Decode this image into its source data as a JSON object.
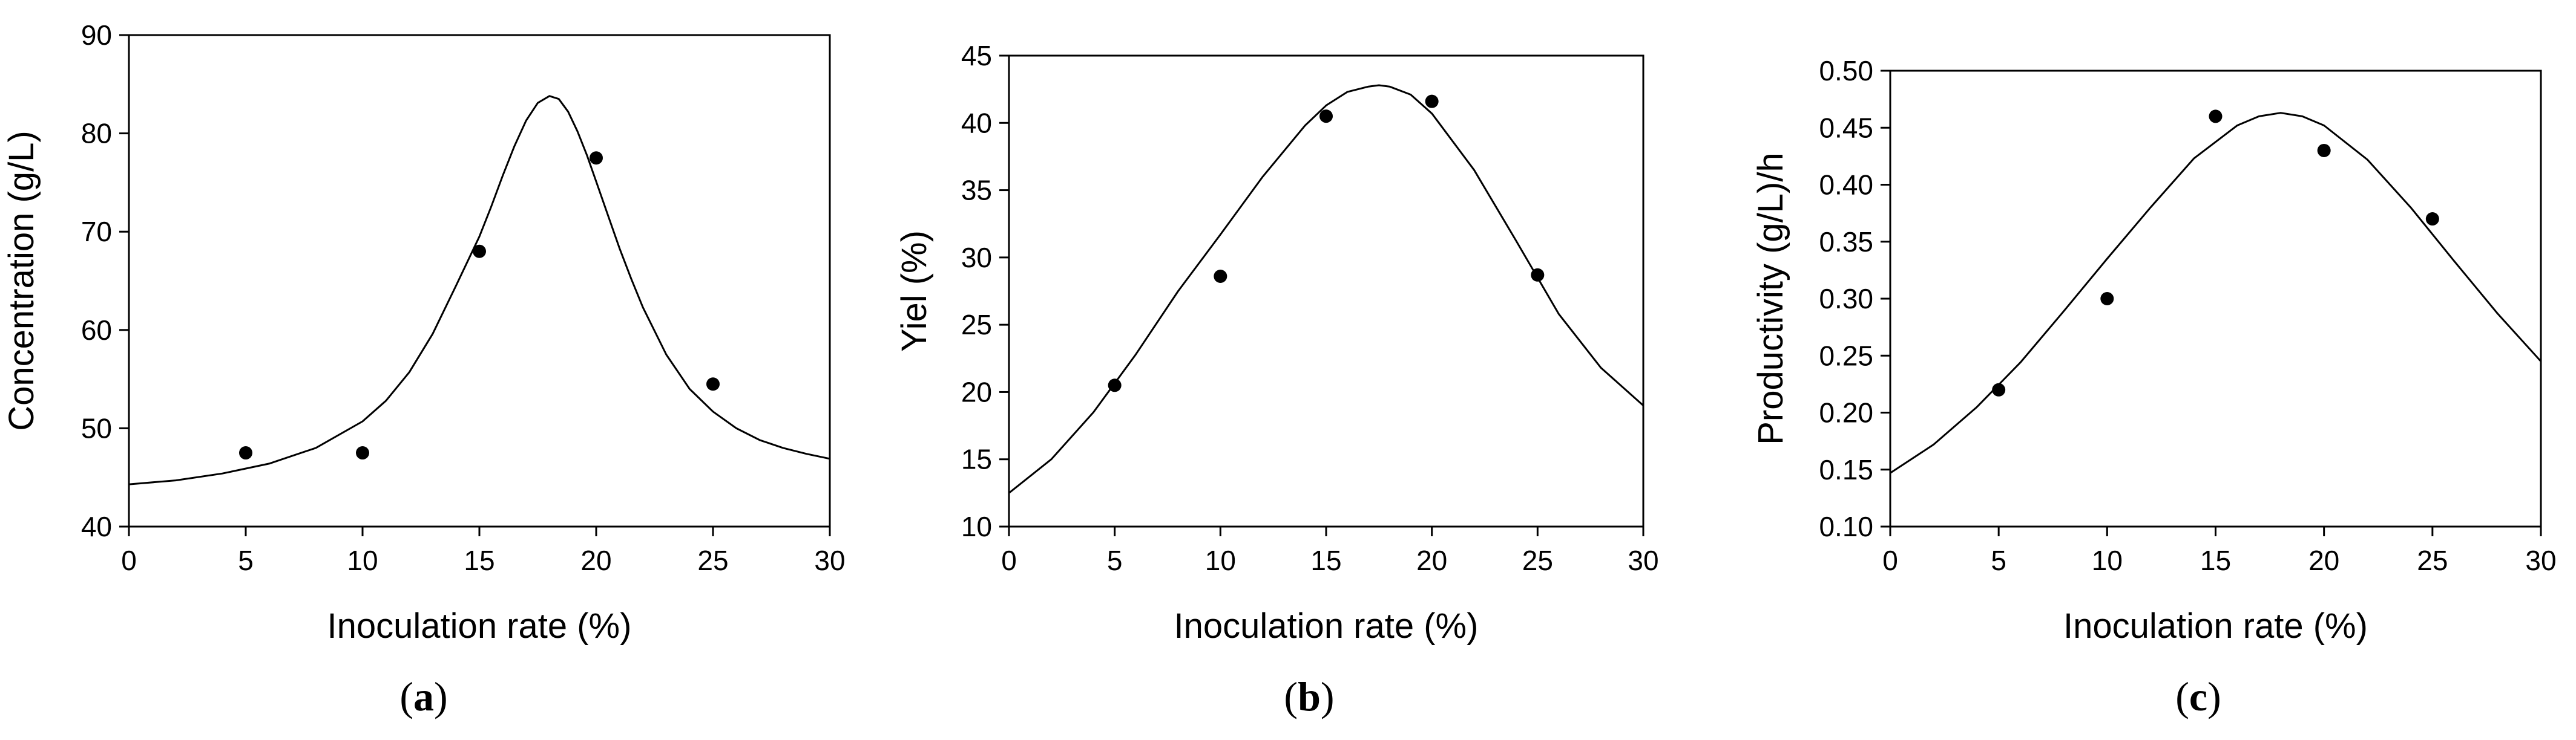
{
  "chart_data": [
    {
      "type": "scatter",
      "panel_label": "a",
      "xlabel": "Inoculation rate (%)",
      "ylabel": "Concentration (g/L)",
      "xlim": [
        0,
        30
      ],
      "ylim": [
        40,
        90
      ],
      "xticks": [
        0,
        5,
        10,
        15,
        20,
        25,
        30
      ],
      "yticks": [
        40,
        50,
        60,
        70,
        80,
        90
      ],
      "grid": false,
      "points": {
        "x": [
          5,
          10,
          15,
          20,
          25
        ],
        "y": [
          47.5,
          47.5,
          68,
          77.5,
          54.5
        ]
      },
      "fit_curve": {
        "x": [
          0,
          2,
          4,
          6,
          8,
          10,
          11,
          12,
          13,
          14,
          15,
          15.5,
          16,
          16.5,
          17,
          17.5,
          18,
          18.4,
          18.8,
          19.2,
          19.6,
          20,
          20.5,
          21,
          21.5,
          22,
          23,
          24,
          25,
          26,
          27,
          28,
          29,
          30
        ],
        "y": [
          44.3,
          44.7,
          45.4,
          46.4,
          48.0,
          50.7,
          52.8,
          55.7,
          59.6,
          64.5,
          69.5,
          72.5,
          75.7,
          78.7,
          81.3,
          83.1,
          83.8,
          83.5,
          82.2,
          80.2,
          77.8,
          75.1,
          71.7,
          68.3,
          65.2,
          62.3,
          57.5,
          54.0,
          51.7,
          50.0,
          48.8,
          48.0,
          47.4,
          46.9
        ]
      }
    },
    {
      "type": "scatter",
      "panel_label": "b",
      "xlabel": "Inoculation rate (%)",
      "ylabel": "Yiel (%)",
      "xlim": [
        0,
        30
      ],
      "ylim": [
        10,
        45
      ],
      "xticks": [
        0,
        5,
        10,
        15,
        20,
        25,
        30
      ],
      "yticks": [
        10,
        15,
        20,
        25,
        30,
        35,
        40,
        45
      ],
      "grid": false,
      "points": {
        "x": [
          5,
          10,
          15,
          20,
          25
        ],
        "y": [
          20.5,
          28.6,
          40.5,
          41.6,
          28.7
        ]
      },
      "fit_curve": {
        "x": [
          0,
          2,
          4,
          6,
          8,
          10,
          12,
          14,
          15,
          16,
          17,
          17.5,
          18,
          19,
          20,
          22,
          24,
          26,
          28,
          30
        ],
        "y": [
          12.5,
          15.0,
          18.5,
          22.8,
          27.5,
          31.7,
          36.0,
          39.8,
          41.3,
          42.3,
          42.7,
          42.8,
          42.7,
          42.1,
          40.7,
          36.5,
          31.2,
          25.8,
          21.8,
          19.0
        ]
      }
    },
    {
      "type": "scatter",
      "panel_label": "c",
      "xlabel": "Inoculation rate (%)",
      "ylabel": "Productivity (g/L)/h",
      "xlim": [
        0,
        30
      ],
      "ylim": [
        0.1,
        0.5
      ],
      "xticks": [
        0,
        5,
        10,
        15,
        20,
        25,
        30
      ],
      "yticks": [
        "0.10",
        "0.15",
        "0.20",
        "0.25",
        "0.30",
        "0.35",
        "0.40",
        "0.45",
        "0.50"
      ],
      "grid": false,
      "points": {
        "x": [
          5,
          10,
          15,
          20,
          25
        ],
        "y": [
          0.22,
          0.3,
          0.46,
          0.43,
          0.37
        ]
      },
      "fit_curve": {
        "x": [
          0,
          2,
          4,
          6,
          8,
          10,
          12,
          14,
          16,
          17,
          18,
          19,
          20,
          22,
          24,
          26,
          28,
          30
        ],
        "y": [
          0.147,
          0.172,
          0.205,
          0.244,
          0.289,
          0.335,
          0.38,
          0.423,
          0.452,
          0.46,
          0.463,
          0.46,
          0.452,
          0.422,
          0.38,
          0.333,
          0.287,
          0.245
        ]
      }
    }
  ]
}
